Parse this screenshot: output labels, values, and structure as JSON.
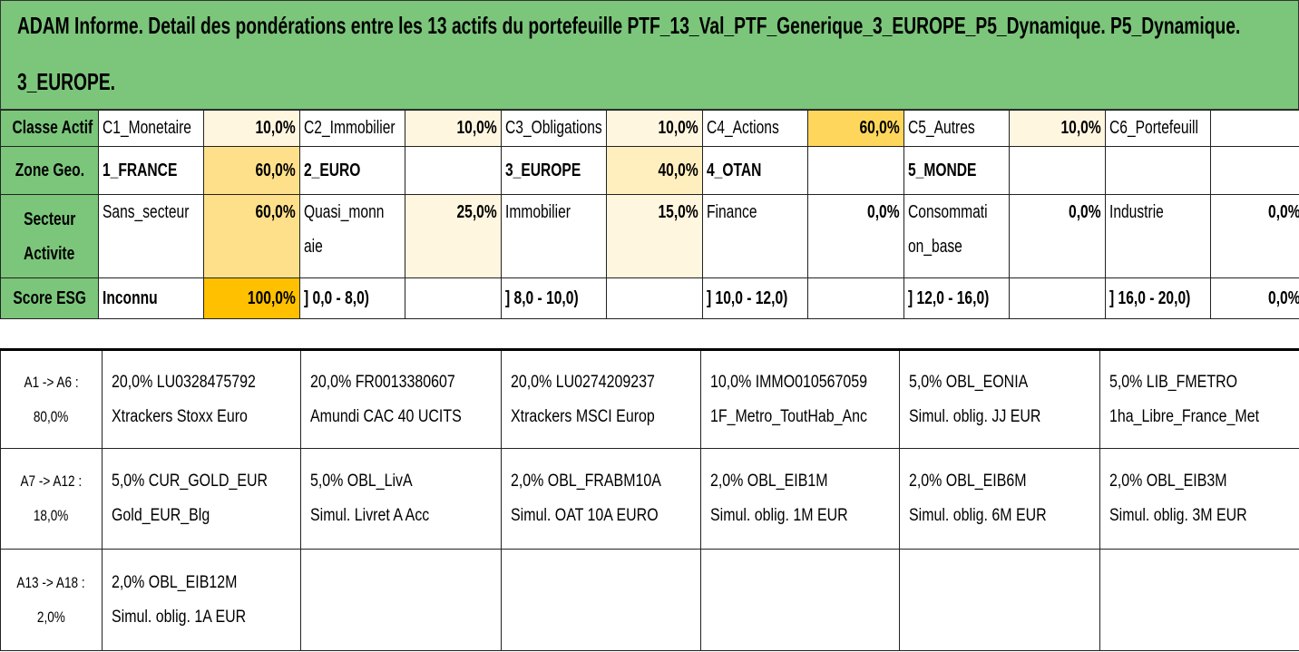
{
  "title": {
    "line1": "ADAM Informe. Detail des pondérations entre les 13 actifs du portefeuille PTF_13_Val_PTF_Generique_3_EUROPE_P5_Dynamique. P5_Dynamique.",
    "line2": "3_EUROPE."
  },
  "colors": {
    "header_green": "#7bc67b",
    "light_cream": "#fff6df",
    "light_yellow": "#ffefbf",
    "mid_yellow": "#ffe08a",
    "strong_yellow": "#ffd65c",
    "orange": "#ffc000"
  },
  "upper": {
    "classe_actif": {
      "label": "Classe Actif",
      "cells": [
        {
          "name": "C1_Monetaire",
          "value": "10,0%"
        },
        {
          "name": "C2_Immobilier",
          "value": "10,0%"
        },
        {
          "name": "C3_Obligations",
          "value": "10,0%"
        },
        {
          "name": "C4_Actions",
          "value": "60,0%"
        },
        {
          "name": "C5_Autres",
          "value": "10,0%"
        },
        {
          "name": "C6_Portefeuill",
          "value": ""
        }
      ]
    },
    "zone_geo": {
      "label": "Zone Geo.",
      "cells": [
        {
          "name": "1_FRANCE",
          "value": "60,0%"
        },
        {
          "name": "2_EURO",
          "value": ""
        },
        {
          "name": "3_EUROPE",
          "value": "40,0%"
        },
        {
          "name": "4_OTAN",
          "value": ""
        },
        {
          "name": "5_MONDE",
          "value": ""
        },
        {
          "name": "",
          "value": ""
        }
      ]
    },
    "secteur": {
      "label1": "Secteur",
      "label2": "Activite",
      "cells": [
        {
          "name1": "Sans_secteur",
          "name2": "",
          "value": "60,0%"
        },
        {
          "name1": "Quasi_monn",
          "name2": "aie",
          "value": "25,0%"
        },
        {
          "name1": "Immobilier",
          "name2": "",
          "value": "15,0%"
        },
        {
          "name1": "Finance",
          "name2": "",
          "value": "0,0%"
        },
        {
          "name1": "Consommati",
          "name2": "on_base",
          "value": "0,0%"
        },
        {
          "name1": "Industrie",
          "name2": "",
          "value": "0,0%"
        }
      ]
    },
    "score_esg": {
      "label": "Score ESG",
      "cells": [
        {
          "name": "Inconnu",
          "value": "100,0%"
        },
        {
          "name": "] 0,0 - 8,0)",
          "value": ""
        },
        {
          "name": "] 8,0 - 10,0)",
          "value": ""
        },
        {
          "name": "] 10,0 - 12,0)",
          "value": ""
        },
        {
          "name": "] 12,0 - 16,0)",
          "value": ""
        },
        {
          "name": "] 16,0 - 20,0)",
          "value": "0,0%"
        }
      ]
    }
  },
  "lower": [
    {
      "group1": "A1 -> A6 :",
      "group2": "80,0%",
      "assets": [
        {
          "line1": "20,0% LU0328475792",
          "line2": "Xtrackers Stoxx Euro"
        },
        {
          "line1": "20,0% FR0013380607",
          "line2": "Amundi CAC 40 UCITS"
        },
        {
          "line1": "20,0% LU0274209237",
          "line2": "Xtrackers MSCI Europ"
        },
        {
          "line1": "10,0% IMMO010567059",
          "line2": "1F_Metro_ToutHab_Anc"
        },
        {
          "line1": "5,0% OBL_EONIA",
          "line2": "Simul. oblig. JJ EUR"
        },
        {
          "line1": "5,0% LIB_FMETRO",
          "line2": "1ha_Libre_France_Met"
        }
      ]
    },
    {
      "group1": "A7 -> A12 :",
      "group2": "18,0%",
      "assets": [
        {
          "line1": "5,0% CUR_GOLD_EUR",
          "line2": "Gold_EUR_Blg"
        },
        {
          "line1": "5,0% OBL_LivA",
          "line2": "Simul. Livret A Acc"
        },
        {
          "line1": "2,0% OBL_FRABM10A",
          "line2": "Simul. OAT 10A EURO"
        },
        {
          "line1": "2,0% OBL_EIB1M",
          "line2": "Simul. oblig. 1M EUR"
        },
        {
          "line1": "2,0% OBL_EIB6M",
          "line2": "Simul. oblig. 6M EUR"
        },
        {
          "line1": "2,0% OBL_EIB3M",
          "line2": "Simul. oblig. 3M EUR"
        }
      ]
    },
    {
      "group1": "A13 -> A18 :",
      "group2": "2,0%",
      "assets": [
        {
          "line1": "2,0% OBL_EIB12M",
          "line2": "Simul. oblig. 1A EUR"
        },
        {
          "line1": "",
          "line2": ""
        },
        {
          "line1": "",
          "line2": ""
        },
        {
          "line1": "",
          "line2": ""
        },
        {
          "line1": "",
          "line2": ""
        },
        {
          "line1": "",
          "line2": ""
        }
      ]
    }
  ]
}
